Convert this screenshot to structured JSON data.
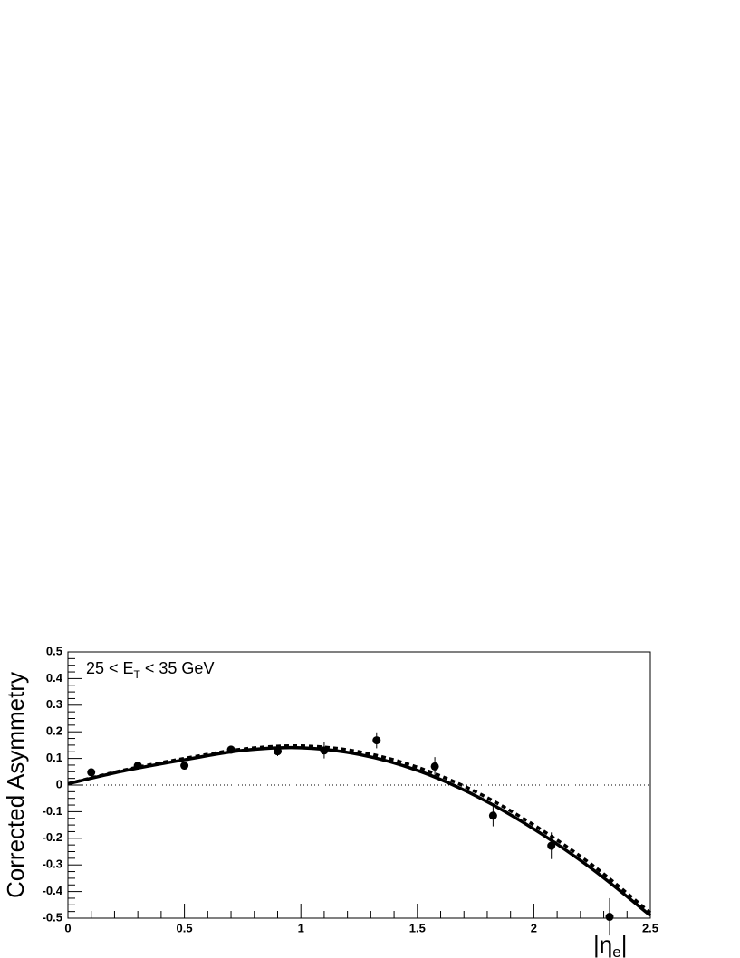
{
  "chart_data": {
    "type": "scatter",
    "ylabel": "Corrected Asymmetry",
    "xlabel": [
      "|η",
      "e",
      "|"
    ],
    "annotation": [
      "25 < E",
      "T",
      " < 35 GeV"
    ],
    "xlim": [
      0,
      2.5
    ],
    "xticks": [
      0,
      0.5,
      1,
      1.5,
      2,
      2.5
    ],
    "ylim": [
      -0.5,
      0.5
    ],
    "yticks": [
      -0.5,
      -0.4,
      -0.3,
      -0.2,
      -0.1,
      0,
      0.1,
      0.2,
      0.3,
      0.4,
      0.5
    ],
    "zero_line": true,
    "points": {
      "color": "#000000",
      "x": [
        0.1,
        0.3,
        0.5,
        0.7,
        0.9,
        1.1,
        1.325,
        1.575,
        1.825,
        2.075,
        2.325
      ],
      "values": [
        0.048,
        0.073,
        0.073,
        0.133,
        0.127,
        0.13,
        0.168,
        0.07,
        -0.115,
        -0.228,
        -0.495
      ],
      "errors": [
        0.015,
        0.015,
        0.015,
        0.015,
        0.018,
        0.03,
        0.03,
        0.035,
        0.04,
        0.05,
        0.07
      ]
    },
    "curves": [
      {
        "style": "solid",
        "color": "#000000",
        "x": [
          0,
          0.25,
          0.5,
          0.75,
          1,
          1.25,
          1.5,
          1.75,
          2,
          2.25,
          2.5
        ],
        "values": [
          0.005,
          0.055,
          0.095,
          0.13,
          0.14,
          0.115,
          0.055,
          -0.04,
          -0.165,
          -0.315,
          -0.49
        ]
      },
      {
        "style": "dashed",
        "color": "#000000",
        "x": [
          0,
          0.25,
          0.5,
          0.75,
          1,
          1.25,
          1.5,
          1.75,
          2,
          2.25,
          2.5
        ],
        "values": [
          0.005,
          0.058,
          0.1,
          0.135,
          0.147,
          0.125,
          0.067,
          -0.025,
          -0.15,
          -0.3,
          -0.48
        ]
      }
    ]
  }
}
